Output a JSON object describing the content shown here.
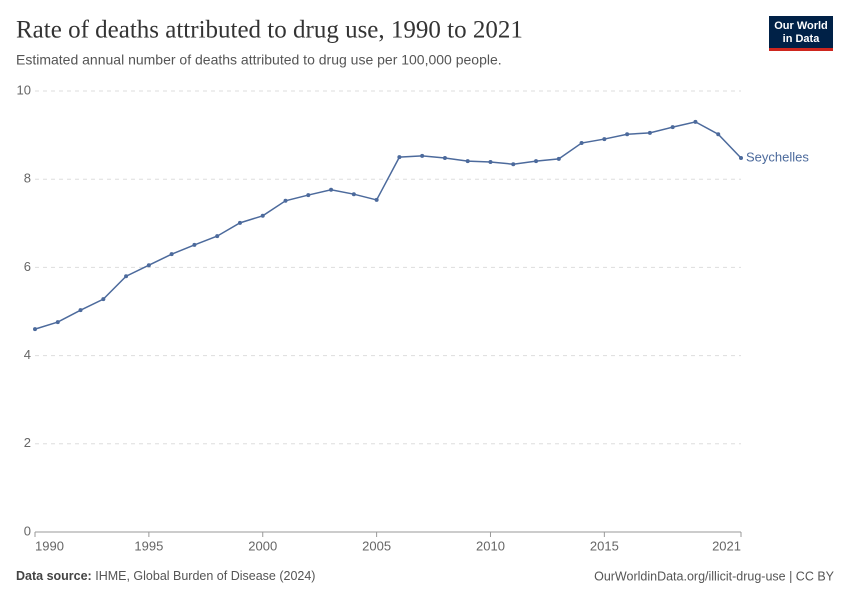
{
  "chart_data": {
    "type": "line",
    "title": "Rate of deaths attributed to drug use, 1990 to 2021",
    "subtitle": "Estimated annual number of deaths attributed to drug use per 100,000 people.",
    "source_label": "Data source:",
    "source": "IHME, Global Burden of Disease (2024)",
    "url": "OurWorldinData.org/illicit-drug-use | CC BY",
    "logo": [
      "Our World",
      "in Data"
    ],
    "x": [
      1990,
      1991,
      1992,
      1993,
      1994,
      1995,
      1996,
      1997,
      1998,
      1999,
      2000,
      2001,
      2002,
      2003,
      2004,
      2005,
      2006,
      2007,
      2008,
      2009,
      2010,
      2011,
      2012,
      2013,
      2014,
      2015,
      2016,
      2017,
      2018,
      2019,
      2020,
      2021
    ],
    "series": [
      {
        "name": "Seychelles",
        "color": "#4c6a9c",
        "values": [
          4.6,
          4.76,
          5.03,
          5.28,
          5.8,
          6.05,
          6.3,
          6.51,
          6.71,
          7.01,
          7.17,
          7.51,
          7.64,
          7.76,
          7.66,
          7.53,
          8.5,
          8.53,
          8.48,
          8.41,
          8.39,
          8.34,
          8.41,
          8.46,
          8.82,
          8.91,
          9.02,
          9.05,
          9.18,
          9.3,
          9.02,
          8.48
        ]
      }
    ],
    "xlim": [
      1990,
      2021
    ],
    "xticks": [
      1990,
      1995,
      2000,
      2005,
      2010,
      2015,
      2021
    ],
    "ylim": [
      0,
      10
    ],
    "yticks": [
      0,
      2,
      4,
      6,
      8,
      10
    ],
    "grid": true
  }
}
